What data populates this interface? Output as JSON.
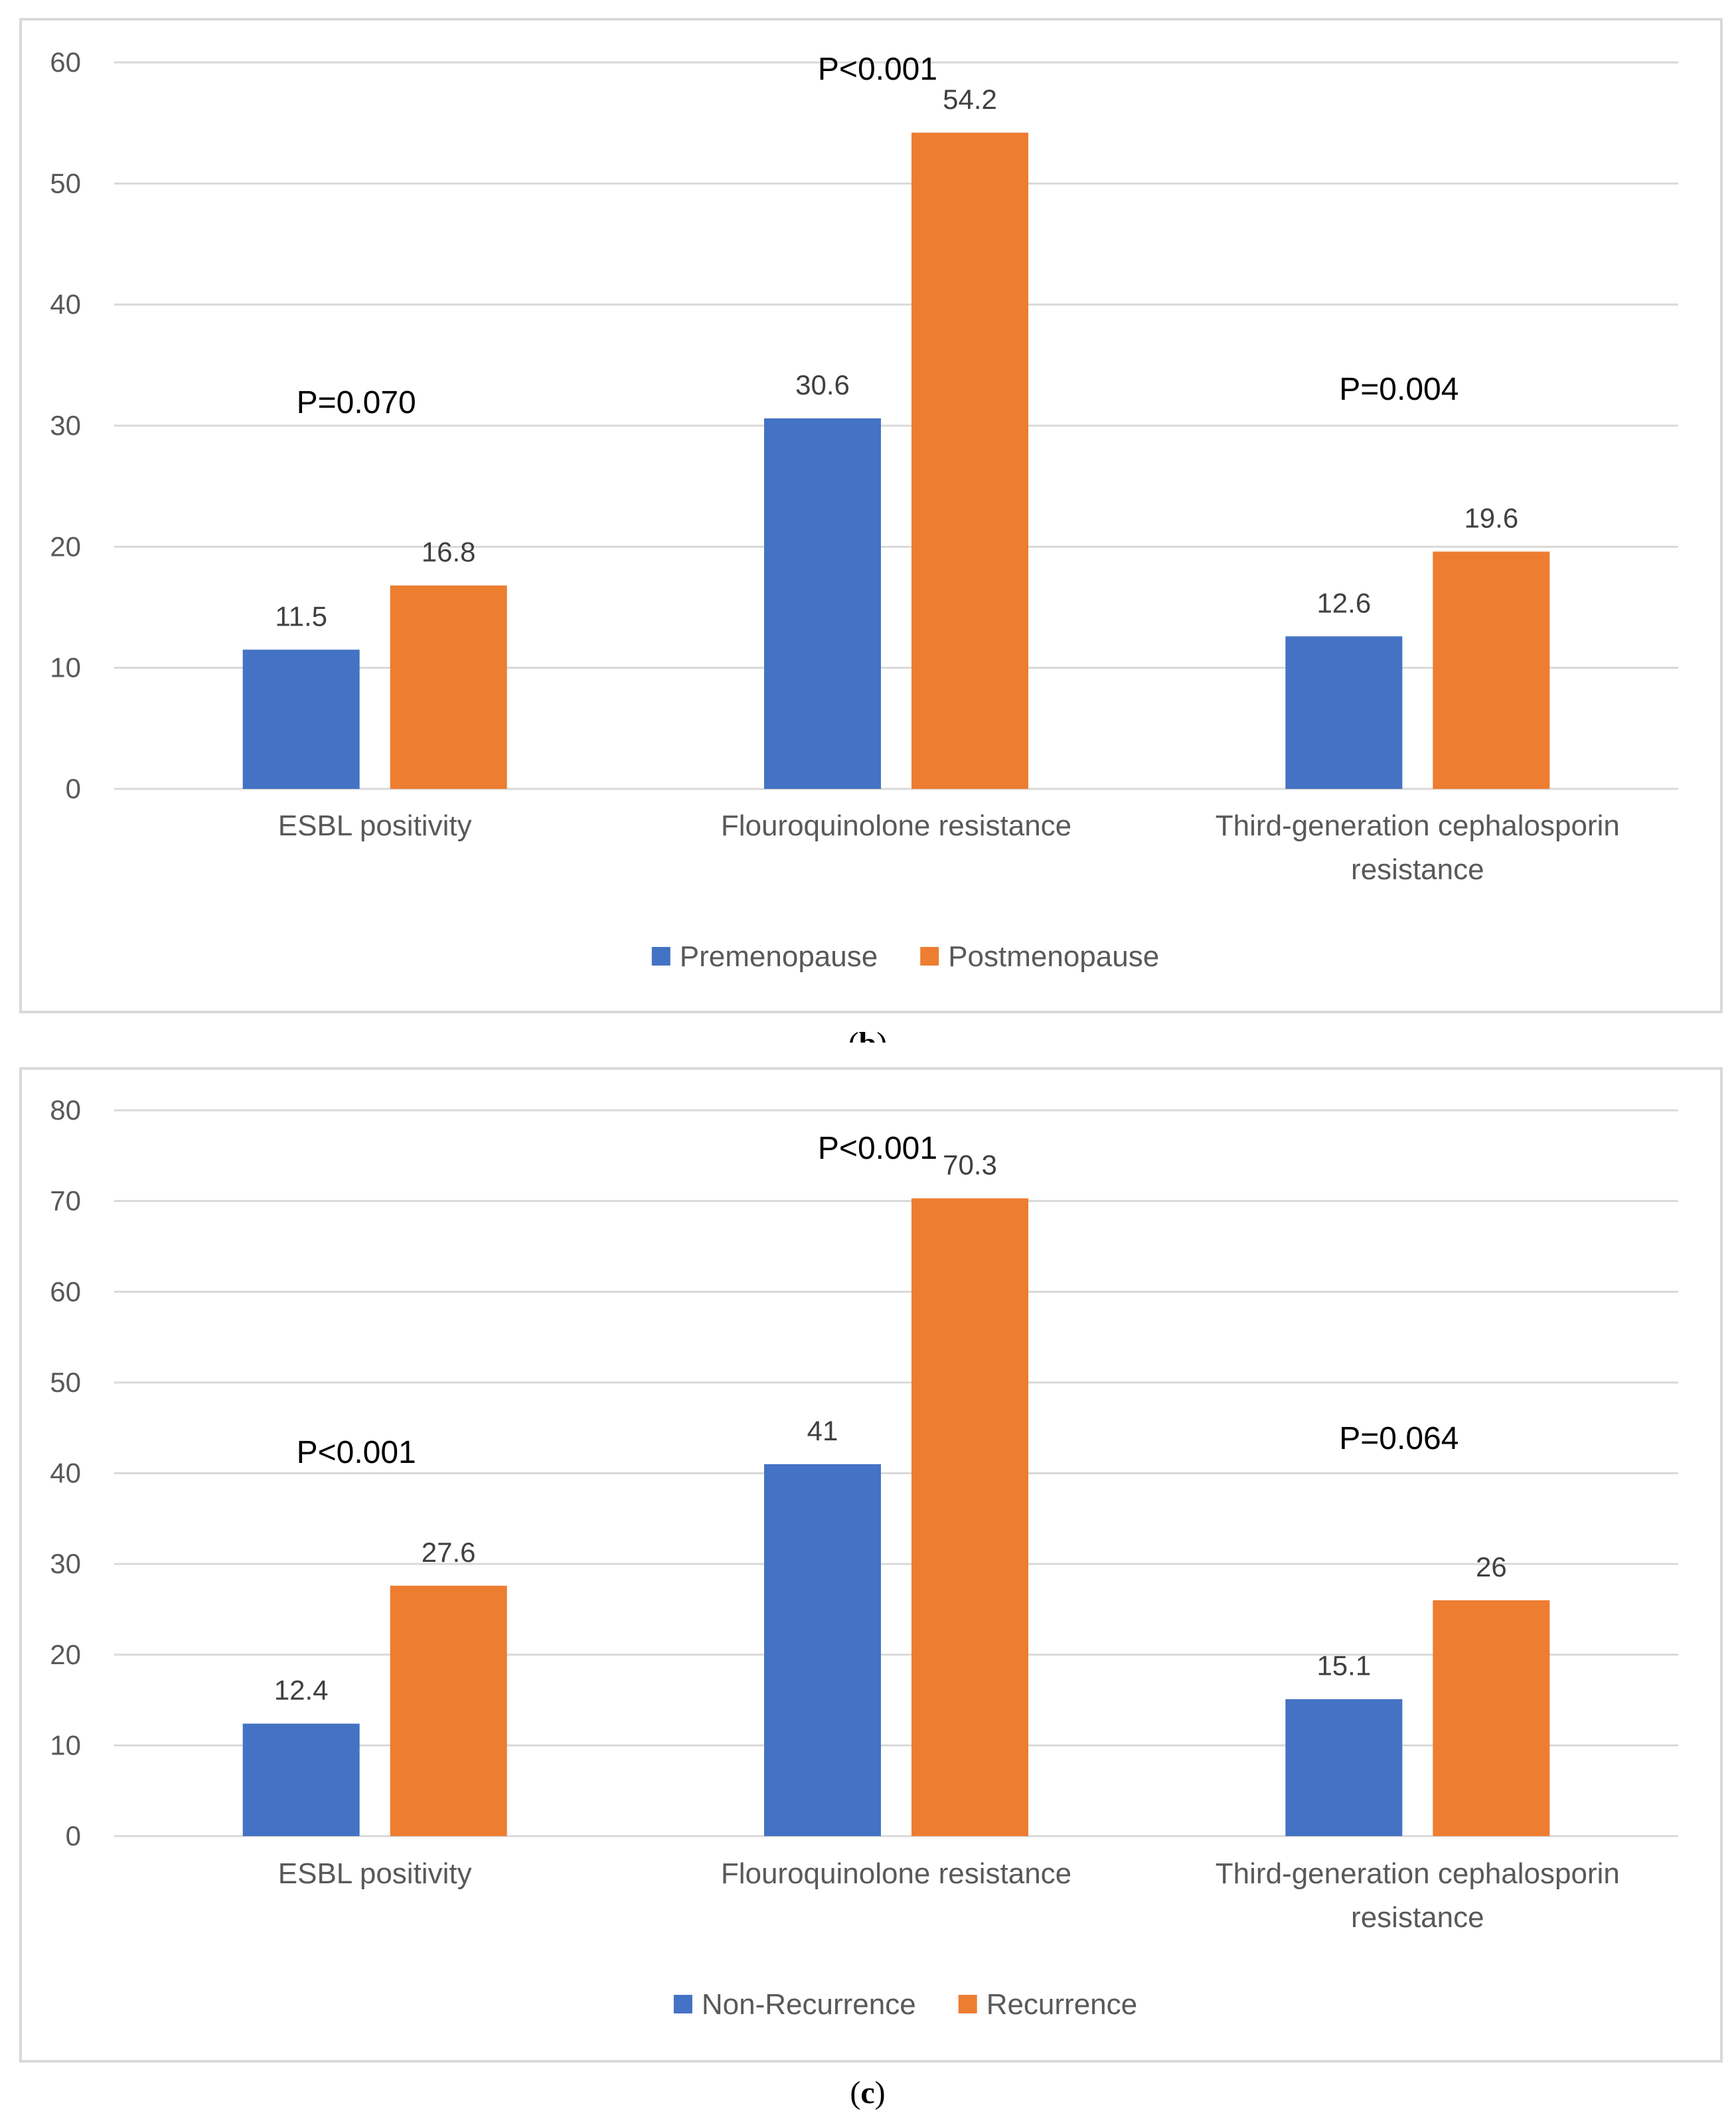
{
  "panels": [
    {
      "caption_label": "b"
    },
    {
      "caption_label": "c"
    }
  ],
  "chart_data": [
    {
      "type": "bar",
      "categories": [
        "ESBL positivity",
        "Flouroquinolone resistance",
        "Third-generation cephalosporin resistance"
      ],
      "category_lines": [
        [
          "ESBL positivity"
        ],
        [
          "Flouroquinolone resistance"
        ],
        [
          "Third-generation cephalosporin",
          "resistance"
        ]
      ],
      "series": [
        {
          "name": "Premenopause",
          "values": [
            11.5,
            30.6,
            12.6
          ],
          "labels": [
            "11.5",
            "30.6",
            "12.6"
          ],
          "color": "#4472C4"
        },
        {
          "name": "Postmenopause",
          "values": [
            16.8,
            54.2,
            19.6
          ],
          "labels": [
            "16.8",
            "54.2",
            "19.6"
          ],
          "color": "#ED7D31"
        }
      ],
      "annotations": [
        "P=0.070",
        "P<0.001",
        "P=0.004"
      ],
      "ylim": [
        0,
        60
      ],
      "yticks": [
        0,
        10,
        20,
        30,
        40,
        50,
        60
      ],
      "grid": true,
      "legend": "bottom-center"
    },
    {
      "type": "bar",
      "categories": [
        "ESBL positivity",
        "Flouroquinolone resistance",
        "Third-generation cephalosporin resistance"
      ],
      "category_lines": [
        [
          "ESBL positivity"
        ],
        [
          "Flouroquinolone resistance"
        ],
        [
          "Third-generation cephalosporin",
          "resistance"
        ]
      ],
      "series": [
        {
          "name": "Non-Recurrence",
          "values": [
            12.4,
            41,
            15.1
          ],
          "labels": [
            "12.4",
            "41",
            "15.1"
          ],
          "color": "#4472C4"
        },
        {
          "name": "Recurrence",
          "values": [
            27.6,
            70.3,
            26
          ],
          "labels": [
            "27.6",
            "70.3",
            "26"
          ],
          "color": "#ED7D31"
        }
      ],
      "annotations": [
        "P<0.001",
        "P<0.001",
        "P=0.064"
      ],
      "ylim": [
        0,
        80
      ],
      "yticks": [
        0,
        10,
        20,
        30,
        40,
        50,
        60,
        70,
        80
      ],
      "grid": true,
      "legend": "bottom-center"
    }
  ]
}
